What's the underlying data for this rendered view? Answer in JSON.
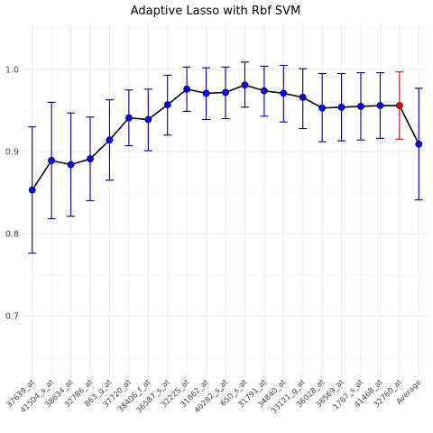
{
  "chart_data": {
    "type": "line",
    "title": "Adaptive Lasso with Rbf SVM",
    "xlabel": "",
    "ylabel": "",
    "ylim": [
      0.625,
      1.055
    ],
    "yticks": [
      0.7,
      0.8,
      0.9,
      1.0
    ],
    "ytick_labels": [
      "0.7",
      "0.8",
      "0.9",
      "1.0"
    ],
    "grid": true,
    "legend": "none",
    "colors": {
      "line": "#000000",
      "point": "#0000ff",
      "errorbar": "#00008b",
      "highlight_point": "#e00000",
      "highlight_errorbar": "#e00000",
      "grid": "#ebebeb"
    },
    "highlight_category": "32760_at",
    "categories": [
      "37639_at",
      "41504_s_at",
      "38634_at",
      "32786_at",
      "863_g_at",
      "37720_at",
      "38406_f_at",
      "36587_s_at",
      "32225_at",
      "31862_at",
      "40282_s_at",
      "650_s_at",
      "31791_at",
      "34840_at",
      "33121_g_at",
      "36028_at",
      "36569_at",
      "1767_s_at",
      "41468_at",
      "32760_at",
      "Average"
    ],
    "series": [
      {
        "values": [
          0.853,
          0.889,
          0.884,
          0.891,
          0.914,
          0.941,
          0.939,
          0.957,
          0.976,
          0.971,
          0.972,
          0.981,
          0.974,
          0.971,
          0.966,
          0.953,
          0.954,
          0.955,
          0.956,
          0.956,
          0.909
        ],
        "lower": [
          0.776,
          0.818,
          0.821,
          0.84,
          0.865,
          0.907,
          0.901,
          0.92,
          0.949,
          0.939,
          0.94,
          0.954,
          0.943,
          0.936,
          0.928,
          0.912,
          0.913,
          0.914,
          0.916,
          0.915,
          0.841
        ],
        "upper": [
          0.93,
          0.96,
          0.947,
          0.942,
          0.963,
          0.975,
          0.976,
          0.993,
          1.003,
          1.002,
          1.003,
          1.009,
          1.004,
          1.005,
          1.001,
          0.995,
          0.995,
          0.996,
          0.996,
          0.997,
          0.977
        ]
      }
    ]
  }
}
